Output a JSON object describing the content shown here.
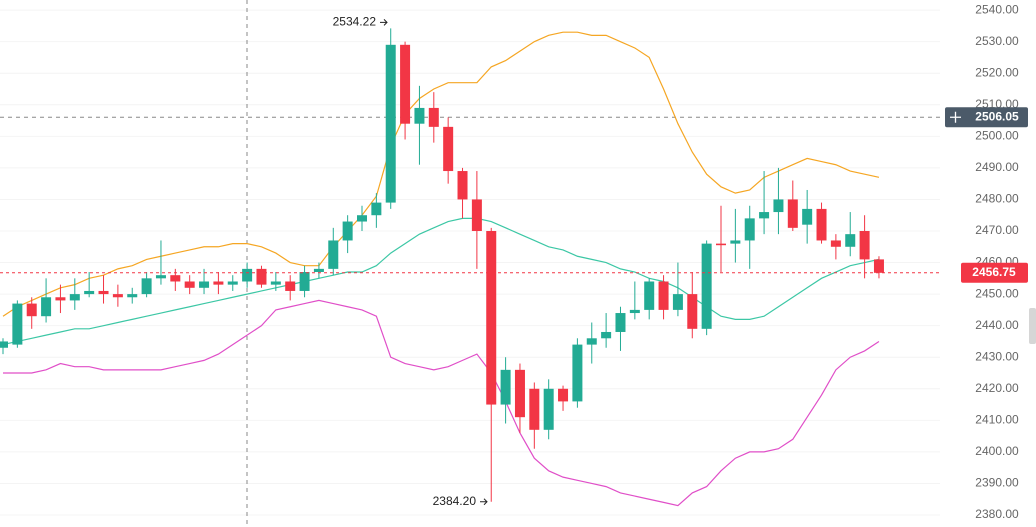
{
  "chart_data": {
    "type": "candlestick",
    "open": [
      2433,
      2434,
      2447,
      2443,
      2449,
      2448,
      2450,
      2451,
      2450,
      2449,
      2450,
      2455,
      2456,
      2454,
      2452,
      2454,
      2453,
      2454,
      2458,
      2453,
      2454,
      2451,
      2457,
      2458,
      2467,
      2473,
      2475,
      2479,
      2529,
      2504,
      2509,
      2503,
      2489,
      2480,
      2470,
      2415,
      2426,
      2420,
      2407,
      2420,
      2416,
      2434,
      2436,
      2438,
      2444,
      2445,
      2454,
      2445,
      2450,
      2439,
      2466,
      2466,
      2467,
      2474,
      2476,
      2480,
      2472,
      2477,
      2467,
      2465,
      2470,
      2461
    ],
    "high": [
      2436,
      2448,
      2449,
      2455,
      2453,
      2455,
      2457,
      2456,
      2453,
      2452,
      2457,
      2467,
      2458,
      2456,
      2458,
      2457,
      2456,
      2460,
      2459,
      2457,
      2456,
      2459,
      2460,
      2471,
      2475,
      2478,
      2482,
      2534.22,
      2530,
      2516,
      2514,
      2506,
      2490,
      2489,
      2471,
      2430,
      2428,
      2422,
      2423,
      2421,
      2436,
      2441,
      2444,
      2446,
      2454,
      2455,
      2456,
      2460,
      2457,
      2467,
      2478,
      2477,
      2478,
      2489,
      2490,
      2486,
      2483,
      2479,
      2469,
      2476,
      2475,
      2462
    ],
    "low": [
      2431,
      2433,
      2439,
      2441,
      2444,
      2445,
      2449,
      2447,
      2446,
      2447,
      2449,
      2453,
      2451,
      2450,
      2450,
      2450,
      2451,
      2452,
      2452,
      2451,
      2448,
      2449,
      2455,
      2456,
      2463,
      2470,
      2471,
      2477,
      2499,
      2491,
      2498,
      2485,
      2474,
      2458,
      2384.2,
      2409,
      2406,
      2401,
      2404,
      2413,
      2414,
      2428,
      2433,
      2432,
      2442,
      2442,
      2442,
      2443,
      2436,
      2437,
      2457,
      2460,
      2458,
      2469,
      2469,
      2470,
      2466,
      2466,
      2461,
      2462,
      2455,
      2455
    ],
    "close": [
      2435,
      2447,
      2443,
      2449,
      2448,
      2450,
      2451,
      2450,
      2449,
      2450,
      2455,
      2456,
      2454,
      2452,
      2454,
      2453,
      2454,
      2458,
      2453,
      2454,
      2451,
      2457,
      2458,
      2467,
      2473,
      2475,
      2479,
      2529,
      2504,
      2509,
      2503,
      2489,
      2480,
      2470,
      2415,
      2426,
      2411,
      2407,
      2420,
      2416,
      2434,
      2436,
      2438,
      2444,
      2445,
      2454,
      2445,
      2450,
      2439,
      2466,
      2465.5,
      2467,
      2474,
      2476,
      2480,
      2471,
      2477,
      2467,
      2465,
      2469,
      2461,
      2456.75
    ],
    "up_color": "#22ab94",
    "down_color": "#f23645",
    "bands": [
      {
        "color": "#f5a623",
        "values": [
          2443,
          2446,
          2448,
          2450,
          2452,
          2453,
          2455,
          2456,
          2458,
          2459,
          2461,
          2462,
          2463,
          2464,
          2465,
          2465,
          2466,
          2466,
          2465,
          2463,
          2460,
          2459,
          2459,
          2465,
          2470,
          2475,
          2481,
          2497,
          2507,
          2512,
          2515,
          2517,
          2517,
          2517,
          2522,
          2524,
          2527,
          2530,
          2532,
          2533,
          2533,
          2532,
          2532,
          2530,
          2528,
          2525,
          2515,
          2504,
          2495,
          2488,
          2484,
          2482,
          2483,
          2487,
          2489,
          2491,
          2493,
          2492,
          2491,
          2489,
          2488,
          2487
        ]
      },
      {
        "color": "#3cc7a5",
        "values": [
          2434,
          2435,
          2436,
          2437,
          2438,
          2439,
          2439,
          2440,
          2441,
          2442,
          2443,
          2444,
          2445,
          2446,
          2447,
          2448,
          2449,
          2450,
          2451,
          2452,
          2453,
          2454,
          2455,
          2456,
          2457,
          2457,
          2459,
          2463,
          2466,
          2469,
          2471,
          2473,
          2474,
          2474,
          2473,
          2471,
          2469,
          2467,
          2465,
          2464,
          2462,
          2461,
          2460,
          2458,
          2457,
          2455,
          2454,
          2452,
          2449,
          2446,
          2443,
          2442,
          2442,
          2443,
          2446,
          2449,
          2452,
          2455,
          2457,
          2459,
          2460,
          2461
        ]
      },
      {
        "color": "#e04fc8",
        "values": [
          2425,
          2425,
          2425,
          2426,
          2428,
          2427,
          2427,
          2426,
          2426,
          2426,
          2426,
          2426,
          2427,
          2428,
          2429,
          2431,
          2434,
          2437,
          2440,
          2445,
          2446,
          2447,
          2448,
          2447,
          2446,
          2445,
          2443,
          2430,
          2428,
          2427,
          2426,
          2427,
          2429,
          2431,
          2425,
          2416,
          2406,
          2398,
          2394,
          2392,
          2391,
          2390,
          2389,
          2387,
          2386,
          2385,
          2384,
          2383,
          2387,
          2389,
          2394,
          2398,
          2400,
          2400,
          2401,
          2404,
          2411,
          2418,
          2426,
          2430,
          2432,
          2435
        ]
      }
    ],
    "ylim": [
      2376.2,
      2543.2
    ],
    "yticks": [
      {
        "value": 2380,
        "label": "2380.00"
      },
      {
        "value": 2390,
        "label": "2390.00"
      },
      {
        "value": 2400,
        "label": "2400.00"
      },
      {
        "value": 2410,
        "label": "2410.00"
      },
      {
        "value": 2420,
        "label": "2420.00"
      },
      {
        "value": 2430,
        "label": "2430.00"
      },
      {
        "value": 2440,
        "label": "2440.00"
      },
      {
        "value": 2450,
        "label": "2450.00"
      },
      {
        "value": 2460,
        "label": "2460.00"
      },
      {
        "value": 2470,
        "label": "2470.00"
      },
      {
        "value": 2480,
        "label": "2480.00"
      },
      {
        "value": 2490,
        "label": "2490.00"
      },
      {
        "value": 2500,
        "label": "2500.00"
      },
      {
        "value": 2510,
        "label": "2510.00"
      },
      {
        "value": 2520,
        "label": "2520.00"
      },
      {
        "value": 2530,
        "label": "2530.00"
      },
      {
        "value": 2540,
        "label": "2540.00"
      }
    ],
    "grid": true,
    "high_label": 2534.22,
    "low_label": {
      "value": 2384.2,
      "label": "2384.20"
    },
    "crosshair_price": {
      "value": 2506.05,
      "label": "2506.05"
    },
    "last_price": 2456.75
  }
}
